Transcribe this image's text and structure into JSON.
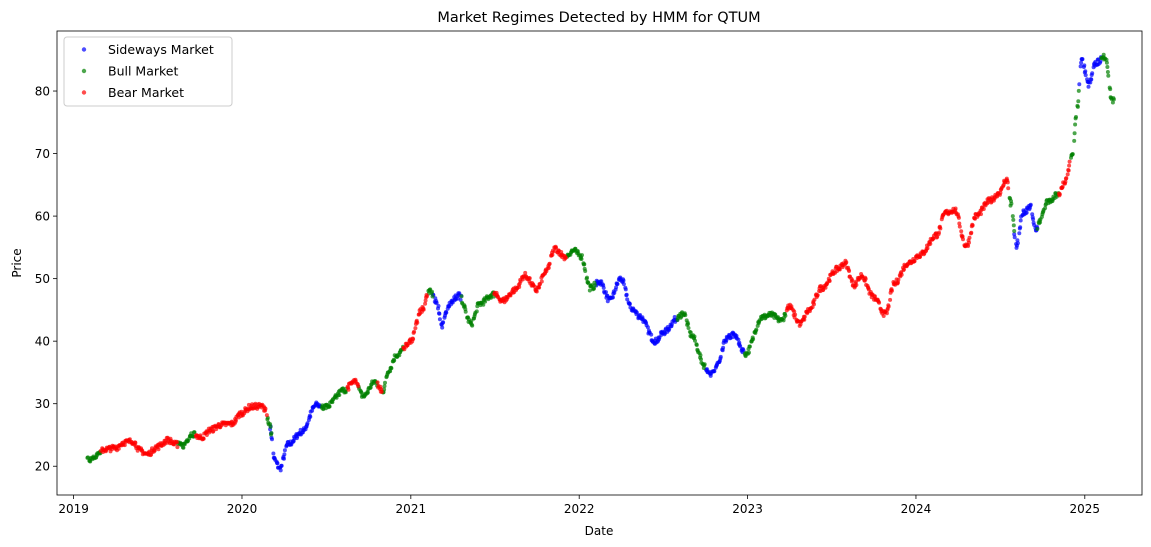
{
  "chart_data": {
    "type": "scatter",
    "title": "Market Regimes Detected by HMM for QTUM",
    "xlabel": "Date",
    "ylabel": "Price",
    "x_range": [
      "2018-11-26",
      "2025-05-05"
    ],
    "ylim": [
      15.4,
      89.6
    ],
    "x_ticks": [
      "2019",
      "2020",
      "2021",
      "2022",
      "2023",
      "2024",
      "2025"
    ],
    "y_ticks": [
      20,
      30,
      40,
      50,
      60,
      70,
      80
    ],
    "grid": false,
    "legend_position": "upper-left",
    "colors": {
      "Sideways Market": "#0000ff",
      "Bull Market": "#008000",
      "Bear Market": "#ff0000"
    },
    "price_path": [
      [
        "2019-01-31",
        21.0
      ],
      [
        "2019-02-20",
        21.8
      ],
      [
        "2019-03-10",
        22.7
      ],
      [
        "2019-04-01",
        22.9
      ],
      [
        "2019-04-20",
        23.8
      ],
      [
        "2019-05-10",
        24.0
      ],
      [
        "2019-05-25",
        22.5
      ],
      [
        "2019-06-10",
        21.9
      ],
      [
        "2019-07-01",
        23.1
      ],
      [
        "2019-07-25",
        24.2
      ],
      [
        "2019-08-10",
        23.5
      ],
      [
        "2019-08-25",
        23.3
      ],
      [
        "2019-09-15",
        25.2
      ],
      [
        "2019-10-05",
        24.6
      ],
      [
        "2019-10-25",
        25.8
      ],
      [
        "2019-11-15",
        26.6
      ],
      [
        "2019-12-10",
        26.8
      ],
      [
        "2019-12-31",
        28.5
      ],
      [
        "2020-01-20",
        29.5
      ],
      [
        "2020-02-10",
        29.6
      ],
      [
        "2020-02-20",
        29.3
      ],
      [
        "2020-03-01",
        26.5
      ],
      [
        "2020-03-12",
        21.0
      ],
      [
        "2020-03-23",
        19.6
      ],
      [
        "2020-04-10",
        23.5
      ],
      [
        "2020-05-10",
        25.5
      ],
      [
        "2020-06-10",
        29.8
      ],
      [
        "2020-07-01",
        29.5
      ],
      [
        "2020-08-10",
        32.2
      ],
      [
        "2020-09-01",
        33.5
      ],
      [
        "2020-09-20",
        31.2
      ],
      [
        "2020-10-15",
        33.5
      ],
      [
        "2020-11-01",
        32.0
      ],
      [
        "2020-11-15",
        35.5
      ],
      [
        "2020-12-01",
        37.8
      ],
      [
        "2020-12-31",
        40.0
      ],
      [
        "2021-01-25",
        45.0
      ],
      [
        "2021-02-10",
        48.0
      ],
      [
        "2021-02-25",
        46.5
      ],
      [
        "2021-03-10",
        42.5
      ],
      [
        "2021-03-25",
        46.0
      ],
      [
        "2021-04-15",
        47.3
      ],
      [
        "2021-05-12",
        42.8
      ],
      [
        "2021-05-30",
        46.0
      ],
      [
        "2021-06-30",
        47.5
      ],
      [
        "2021-07-20",
        46.5
      ],
      [
        "2021-08-15",
        48.2
      ],
      [
        "2021-09-05",
        50.5
      ],
      [
        "2021-10-01",
        48.2
      ],
      [
        "2021-10-20",
        51.0
      ],
      [
        "2021-11-10",
        54.8
      ],
      [
        "2021-12-01",
        53.5
      ],
      [
        "2021-12-20",
        54.5
      ],
      [
        "2022-01-05",
        53.6
      ],
      [
        "2022-01-25",
        48.5
      ],
      [
        "2022-02-15",
        49.5
      ],
      [
        "2022-03-08",
        46.5
      ],
      [
        "2022-04-01",
        50.0
      ],
      [
        "2022-04-25",
        45.2
      ],
      [
        "2022-05-12",
        44.0
      ],
      [
        "2022-06-15",
        40.0
      ],
      [
        "2022-07-05",
        41.5
      ],
      [
        "2022-07-30",
        43.5
      ],
      [
        "2022-08-15",
        44.5
      ],
      [
        "2022-09-01",
        41.0
      ],
      [
        "2022-10-01",
        36.0
      ],
      [
        "2022-10-13",
        34.5
      ],
      [
        "2022-10-31",
        36.5
      ],
      [
        "2022-11-15",
        40.3
      ],
      [
        "2022-12-01",
        41.0
      ],
      [
        "2022-12-28",
        38.0
      ],
      [
        "2023-02-01",
        43.8
      ],
      [
        "2023-02-20",
        44.2
      ],
      [
        "2023-03-15",
        43.3
      ],
      [
        "2023-04-01",
        45.5
      ],
      [
        "2023-04-25",
        42.8
      ],
      [
        "2023-05-15",
        45.0
      ],
      [
        "2023-06-10",
        48.5
      ],
      [
        "2023-07-15",
        51.5
      ],
      [
        "2023-07-31",
        52.5
      ],
      [
        "2023-08-20",
        49.0
      ],
      [
        "2023-09-05",
        50.5
      ],
      [
        "2023-10-01",
        47.0
      ],
      [
        "2023-10-27",
        44.3
      ],
      [
        "2023-11-15",
        49.2
      ],
      [
        "2023-12-15",
        52.5
      ],
      [
        "2024-01-10",
        53.8
      ],
      [
        "2024-02-15",
        57.0
      ],
      [
        "2024-03-05",
        60.5
      ],
      [
        "2024-03-25",
        61.0
      ],
      [
        "2024-04-19",
        55.2
      ],
      [
        "2024-05-10",
        60.0
      ],
      [
        "2024-06-10",
        62.5
      ],
      [
        "2024-07-01",
        63.8
      ],
      [
        "2024-07-15",
        66.0
      ],
      [
        "2024-07-25",
        62.0
      ],
      [
        "2024-08-05",
        55.2
      ],
      [
        "2024-08-20",
        60.5
      ],
      [
        "2024-09-05",
        61.5
      ],
      [
        "2024-09-15",
        58.0
      ],
      [
        "2024-10-15",
        62.5
      ],
      [
        "2024-11-05",
        63.5
      ],
      [
        "2024-11-20",
        65.5
      ],
      [
        "2024-12-05",
        70.0
      ],
      [
        "2024-12-15",
        77.0
      ],
      [
        "2024-12-25",
        85.0
      ],
      [
        "2025-01-10",
        81.0
      ],
      [
        "2025-01-25",
        84.5
      ],
      [
        "2025-02-15",
        85.5
      ],
      [
        "2025-03-01",
        78.5
      ]
    ],
    "series": [
      {
        "name": "Sideways Market",
        "color": "#0000ff",
        "segments": [
          [
            "2020-03-02",
            "2020-06-20"
          ],
          [
            "2021-02-18",
            "2021-04-20"
          ],
          [
            "2022-02-05",
            "2022-08-01"
          ],
          [
            "2022-10-01",
            "2022-12-25"
          ],
          [
            "2024-08-01",
            "2024-09-20"
          ],
          [
            "2024-12-20",
            "2025-02-05"
          ]
        ]
      },
      {
        "name": "Bull Market",
        "color": "#008000",
        "segments": [
          [
            "2019-01-31",
            "2019-02-28"
          ],
          [
            "2019-08-15",
            "2019-09-20"
          ],
          [
            "2020-02-25",
            "2020-03-05"
          ],
          [
            "2020-06-20",
            "2020-08-15"
          ],
          [
            "2020-09-10",
            "2020-10-20"
          ],
          [
            "2020-11-01",
            "2020-12-15"
          ],
          [
            "2021-02-08",
            "2021-02-17"
          ],
          [
            "2021-04-21",
            "2021-06-30"
          ],
          [
            "2021-12-05",
            "2022-02-04"
          ],
          [
            "2022-08-02",
            "2022-09-30"
          ],
          [
            "2022-12-26",
            "2023-03-25"
          ],
          [
            "2024-07-20",
            "2024-08-01"
          ],
          [
            "2024-09-20",
            "2024-11-05"
          ],
          [
            "2024-12-01",
            "2024-12-19"
          ],
          [
            "2025-02-06",
            "2025-03-05"
          ]
        ]
      },
      {
        "name": "Bear Market",
        "color": "#ff0000",
        "segments": [
          [
            "2019-03-01",
            "2019-08-14"
          ],
          [
            "2019-09-21",
            "2020-02-24"
          ],
          [
            "2020-08-16",
            "2020-09-09"
          ],
          [
            "2020-10-21",
            "2020-10-31"
          ],
          [
            "2020-12-16",
            "2021-02-07"
          ],
          [
            "2021-07-01",
            "2021-12-04"
          ],
          [
            "2023-03-26",
            "2024-07-19"
          ],
          [
            "2024-11-06",
            "2024-11-30"
          ]
        ]
      }
    ]
  }
}
